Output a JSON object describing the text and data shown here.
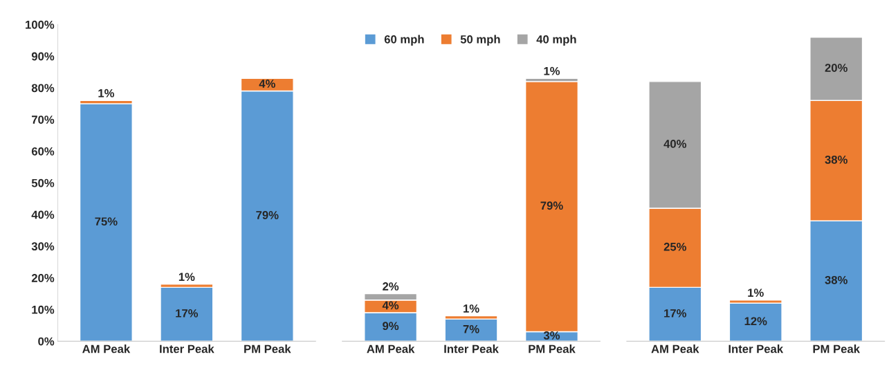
{
  "chart_data": [
    {
      "type": "bar",
      "stacked": true,
      "categories": [
        "AM Peak",
        "Inter Peak",
        "PM Peak"
      ],
      "ylim": [
        0,
        100
      ],
      "yticks": [
        {
          "value": 0,
          "label": "0%"
        },
        {
          "value": 10,
          "label": "10%"
        },
        {
          "value": 20,
          "label": "20%"
        },
        {
          "value": 30,
          "label": "30%"
        },
        {
          "value": 40,
          "label": "40%"
        },
        {
          "value": 50,
          "label": "50%"
        },
        {
          "value": 60,
          "label": "60%"
        },
        {
          "value": 70,
          "label": "70%"
        },
        {
          "value": 80,
          "label": "80%"
        },
        {
          "value": 90,
          "label": "90%"
        },
        {
          "value": 100,
          "label": "100%"
        }
      ],
      "grid": false,
      "legend": false,
      "series": [
        {
          "color": "#5b9bd5",
          "values": [
            75,
            17,
            79
          ],
          "value_labels": [
            "75%",
            "17%",
            "79%"
          ]
        },
        {
          "color": "#ed7d31",
          "values": [
            1,
            1,
            4
          ],
          "value_labels": [
            "1%",
            "1%",
            "4%"
          ]
        }
      ]
    },
    {
      "type": "bar",
      "stacked": true,
      "categories": [
        "AM Peak",
        "Inter Peak",
        "PM Peak"
      ],
      "ylim": [
        0,
        100
      ],
      "tick_labels": "x",
      "grid": false,
      "legend": "top",
      "series": [
        {
          "name": "60 mph",
          "color": "#5b9bd5",
          "values": [
            9,
            7,
            3
          ],
          "value_labels": [
            "9%",
            "7%",
            "3%"
          ]
        },
        {
          "name": "50 mph",
          "color": "#ed7d31",
          "values": [
            4,
            1,
            79
          ],
          "value_labels": [
            "4%",
            "1%",
            "79%"
          ]
        },
        {
          "name": "40 mph",
          "color": "#a5a5a5",
          "values": [
            2,
            null,
            1
          ],
          "value_labels": [
            "2%",
            null,
            "1%"
          ]
        }
      ]
    },
    {
      "type": "bar",
      "stacked": true,
      "categories": [
        "AM Peak",
        "Inter Peak",
        "PM Peak"
      ],
      "ylim": [
        0,
        100
      ],
      "tick_labels": "x",
      "grid": false,
      "legend": false,
      "series": [
        {
          "color": "#5b9bd5",
          "values": [
            17,
            12,
            38
          ],
          "value_labels": [
            "17%",
            "12%",
            "38%"
          ]
        },
        {
          "color": "#ed7d31",
          "values": [
            25,
            1,
            38
          ],
          "value_labels": [
            "25%",
            "1%",
            "38%"
          ]
        },
        {
          "color": "#a5a5a5",
          "values": [
            40,
            null,
            20
          ],
          "value_labels": [
            "40%",
            null,
            "20%"
          ]
        }
      ]
    }
  ]
}
